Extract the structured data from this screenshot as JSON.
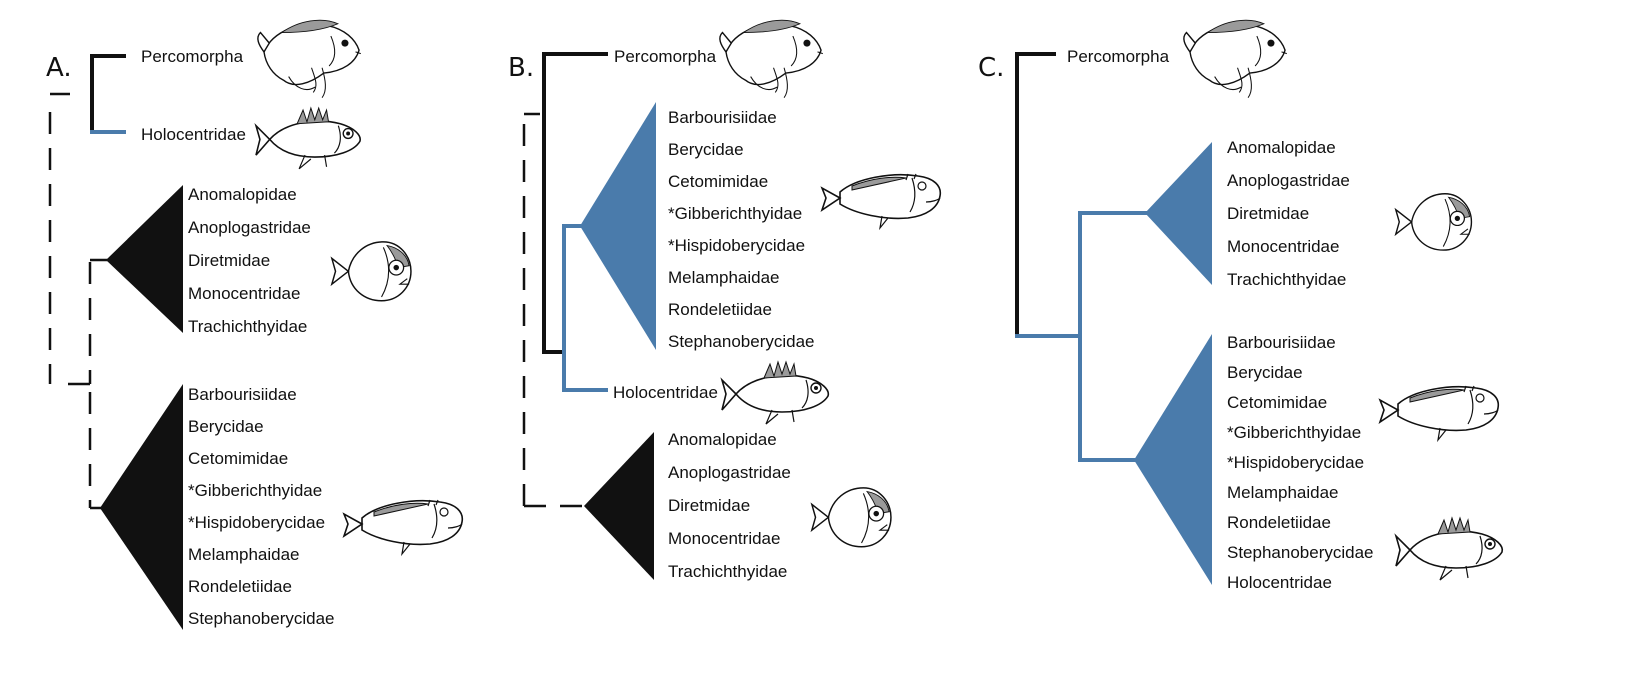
{
  "colors": {
    "black_clade": "#111111",
    "blue_clade": "#4a7bab",
    "background": "#ffffff"
  },
  "panels": [
    {
      "label": "A.",
      "taxa_top": [
        "Percomorpha",
        "Holocentridae"
      ],
      "clade1": [
        "Anomalopidae",
        "Anoplogastridae",
        "Diretmidae",
        "Monocentridae",
        "Trachichthyidae"
      ],
      "clade2": [
        "Barbourisiidae",
        "Berycidae",
        "Cetomimidae",
        "*Gibberichthyidae",
        "*Hispidoberycidae",
        "Melamphaidae",
        "Rondeletiidae",
        "Stephanoberycidae"
      ],
      "icons": [
        "cichlid-fish-icon",
        "squirrelfish-icon",
        "roughy-fish-icon",
        "whalefish-icon"
      ]
    },
    {
      "label": "B.",
      "taxa_top": [
        "Percomorpha"
      ],
      "clade1": [
        "Barbourisiidae",
        "Berycidae",
        "Cetomimidae",
        "*Gibberichthyidae",
        "*Hispidoberycidae",
        "Melamphaidae",
        "Rondeletiidae",
        "Stephanoberycidae"
      ],
      "holocentridae": "Holocentridae",
      "clade2": [
        "Anomalopidae",
        "Anoplogastridae",
        "Diretmidae",
        "Monocentridae",
        "Trachichthyidae"
      ],
      "icons": [
        "cichlid-fish-icon",
        "whalefish-icon",
        "squirrelfish-icon",
        "roughy-fish-icon"
      ]
    },
    {
      "label": "C.",
      "taxa_top": [
        "Percomorpha"
      ],
      "clade1": [
        "Anomalopidae",
        "Anoplogastridae",
        "Diretmidae",
        "Monocentridae",
        "Trachichthyidae"
      ],
      "clade2": [
        "Barbourisiidae",
        "Berycidae",
        "Cetomimidae",
        "*Gibberichthyidae",
        "*Hispidoberycidae",
        "Melamphaidae",
        "Rondeletiidae",
        "Stephanoberycidae",
        "Holocentridae"
      ],
      "icons": [
        "cichlid-fish-icon",
        "roughy-fish-icon",
        "whalefish-icon",
        "squirrelfish-icon"
      ]
    }
  ]
}
